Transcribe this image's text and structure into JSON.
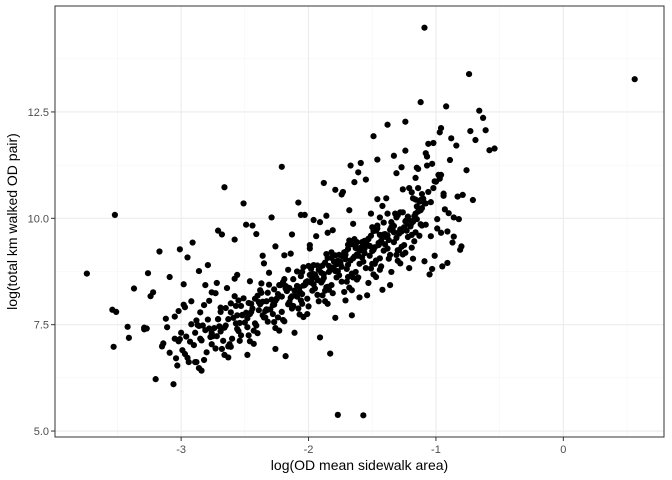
{
  "chart_data": {
    "type": "scatter",
    "xlabel": "log(OD mean sidewalk area)",
    "ylabel": "log(total km walked OD pair)",
    "xlim": [
      -3.99,
      0.79
    ],
    "ylim": [
      4.86,
      14.99
    ],
    "x_ticks": [
      -3,
      -2,
      -1,
      0
    ],
    "x_tick_labels": [
      "-3",
      "-2",
      "-1",
      "0"
    ],
    "y_ticks": [
      5.0,
      7.5,
      10.0,
      12.5
    ],
    "y_tick_labels": [
      "5.0",
      "7.5",
      "10.0",
      "12.5"
    ],
    "grid": true,
    "legend": "none",
    "colors": {
      "point": "#000000",
      "grid_major": "#ebebeb",
      "grid_minor": "#f5f5f5",
      "panel_border": "#333333"
    },
    "x": [
      -3.74,
      -3.52,
      -3.54,
      -3.51,
      -3.53,
      -3.42,
      -3.37,
      -3.29,
      -3.26,
      -3.24,
      -3.22,
      -3.27,
      -3.14,
      -3.09,
      -3.04,
      -3.02,
      -3.01,
      -2.98,
      -2.97,
      -2.95,
      -2.92,
      -2.89,
      -2.88,
      -2.86,
      -2.84,
      -2.82,
      -2.81,
      -2.79,
      -2.76,
      -2.73,
      -2.71,
      -2.69,
      -2.66,
      -2.64,
      -2.61,
      -2.58,
      -2.56,
      -2.54,
      -2.51,
      -2.48,
      -2.46,
      -2.44,
      -2.42,
      -2.39,
      -2.36,
      -2.34,
      -2.31,
      -2.28,
      -2.26,
      -2.23,
      -2.21,
      -2.19,
      -2.16,
      -2.13,
      -2.11,
      -2.09,
      -2.06,
      -2.04,
      -2.01,
      -1.99,
      -1.96,
      -1.94,
      -1.91,
      -1.89,
      -1.86,
      -1.84,
      -1.81,
      -1.79,
      -1.76,
      -1.74,
      -1.71,
      -1.69,
      -1.66,
      -1.64,
      -1.61,
      -1.59,
      -1.56,
      -1.54,
      -1.51,
      -1.49,
      -1.46,
      -1.44,
      -1.41,
      -1.39,
      -1.36,
      -1.34,
      -1.31,
      -1.29,
      -1.26,
      -1.24,
      -1.21,
      -1.19,
      -1.16,
      -1.14,
      -1.11,
      -1.09,
      -1.06,
      -1.04,
      -1.01,
      -0.99,
      -0.96,
      -0.94,
      -0.91,
      -0.89,
      -0.86,
      -0.84,
      -0.81,
      -0.79,
      -0.76,
      -0.73,
      -0.71,
      -0.69,
      -0.66,
      -0.63,
      -0.61,
      -0.58,
      -0.54,
      -0.74,
      -0.92,
      0.56,
      -1.09,
      -1.77,
      -1.57,
      -1.83,
      -2.26,
      -2.18,
      -2.63,
      -1.38,
      -1.12,
      -0.97,
      -1.02,
      -1.24,
      -1.49,
      -1.67,
      -1.88,
      -2.03,
      -2.41,
      -2.72,
      -2.96,
      -3.09,
      -1.31,
      -1.16,
      -1.42,
      -1.55,
      -1.73,
      -1.96,
      -2.14,
      -2.37,
      -2.55,
      -2.86,
      -1.27,
      -1.08,
      -0.88,
      -1.33,
      -1.61,
      -1.79,
      -2.08,
      -2.29,
      -2.49,
      -2.68,
      -2.91,
      -3.17,
      -1.21,
      -1.46,
      -1.68,
      -1.91,
      -1.58,
      -1.37,
      -1.19,
      -1.04,
      -0.94,
      -0.83,
      -1.13,
      -1.29,
      -1.52,
      -1.71,
      -1.84,
      -2.02,
      -2.24,
      -2.44,
      -2.63,
      -2.81,
      -3.02,
      -1.44,
      -1.26,
      -1.07,
      -1.65,
      -1.85,
      -1.99,
      -2.19,
      -2.35,
      -2.58,
      -2.76,
      -2.97,
      -3.12,
      -3.29,
      -3.41,
      -1.11,
      -1.33,
      -1.53,
      -1.72,
      -1.93,
      -2.12,
      -2.32,
      -2.53,
      -2.71,
      -2.89,
      -1.38,
      -1.18,
      -1.02,
      -0.96,
      -1.47,
      -1.63,
      -1.82,
      -2.05,
      -2.22,
      -2.42,
      -2.61,
      -2.83,
      -3.01,
      -1.23,
      -1.41,
      -1.59,
      -1.76,
      -1.95,
      -2.15,
      -2.33,
      -2.52,
      -2.74,
      -2.93,
      -1.15,
      -1.35,
      -1.51,
      -1.69,
      -1.87,
      -2.06,
      -2.27,
      -2.47,
      -1.25,
      -1.43,
      -1.62,
      -1.81,
      -2.01,
      -1.08,
      -1.31,
      -1.49,
      -1.66,
      -1.85,
      -2.09,
      -2.31,
      -2.51,
      -2.69,
      -2.87,
      -3.05,
      -1.19,
      -1.39,
      -1.57,
      -1.75,
      -1.94,
      -2.11,
      -1.28,
      -1.45,
      -1.64,
      -1.83,
      -2.02,
      -2.21,
      -2.39,
      -2.57,
      -2.77,
      -2.99,
      -1.14,
      -1.34,
      -1.53,
      -1.71,
      -1.89,
      -1.22,
      -1.42,
      -1.6,
      -1.78,
      -1.97,
      -2.17,
      -2.38,
      -2.59,
      -1.12,
      -1.32,
      -1.5,
      -1.68,
      -1.86,
      -2.04,
      -1.24,
      -1.44,
      -1.63,
      -1.8,
      -1.99,
      -2.18,
      -2.36,
      -2.56,
      -2.78,
      -1.17,
      -1.36,
      -1.55,
      -1.73,
      -1.92,
      -1.29,
      -1.48,
      -1.67,
      -1.88,
      -2.07,
      -2.26,
      -2.46,
      -2.66,
      -1.21,
      -1.4,
      -1.58,
      -1.77,
      -1.96,
      -2.16,
      -1.33,
      -1.52,
      -1.7,
      -1.9,
      -2.1,
      -2.3,
      -2.5,
      -2.72,
      -1.13,
      -1.3,
      -1.46,
      -1.62,
      -1.79,
      -1.98,
      -2.2,
      -2.4,
      -1.27,
      -1.45,
      -1.65,
      -1.84,
      -2.03,
      -2.25,
      -2.45,
      -2.65,
      -2.85,
      -1.2,
      -1.37,
      -1.56,
      -1.74,
      -1.93,
      -1.3,
      -1.5,
      -1.69,
      -1.87,
      -2.05,
      -2.24,
      -2.43,
      -2.62,
      -1.16,
      -1.35,
      -1.54,
      -1.72,
      -1.91,
      -1.26,
      -1.43,
      -1.61,
      -1.8,
      -1.98,
      -2.13,
      -2.33,
      -2.54,
      -2.75,
      -1.18,
      -1.38,
      -1.56,
      -1.75,
      -1.95,
      -1.27,
      -1.47,
      -1.66,
      -1.86,
      -2.06,
      -2.28,
      -2.48,
      -2.67,
      -1.1,
      -1.28,
      -1.46,
      -1.64,
      -1.82,
      -2.0,
      -2.19,
      -2.37,
      -2.57,
      -2.79,
      -3.0,
      -3.15,
      -1.23,
      -1.4,
      -1.58,
      -1.77,
      -1.96,
      -2.14,
      -2.34,
      -1.31,
      -1.51,
      -1.7,
      -1.89,
      -2.08,
      -2.27,
      -2.47,
      -2.68,
      -2.88,
      -1.15,
      -1.33,
      -1.52,
      -1.71,
      -1.9,
      -2.09,
      -2.29,
      -2.49,
      -2.7,
      -1.22,
      -1.41,
      -1.6,
      -1.78,
      -1.97,
      -2.16,
      -2.35,
      -2.55,
      -2.76,
      -2.95,
      -1.25,
      -1.44,
      -1.63,
      -1.82,
      -2.01,
      -2.21,
      -2.41,
      -2.6,
      -2.8,
      -3.03,
      -3.2,
      -1.19,
      -1.38,
      -1.57,
      -1.76,
      -1.95,
      -2.15,
      -2.36,
      -2.56,
      -1.3,
      -1.49,
      -1.68,
      -1.87,
      -2.07,
      -2.26,
      -2.46,
      -2.66,
      -2.86,
      -1.12,
      -1.31,
      -1.5,
      -1.69,
      -1.88,
      -2.07,
      -2.27,
      -2.48,
      -2.69,
      -2.9,
      -1.24,
      -1.43,
      -1.62,
      -1.81,
      -2.0,
      -2.2,
      -2.4,
      -2.61,
      -2.82,
      -1.17,
      -1.36,
      -1.55,
      -1.74,
      -1.93,
      -2.13,
      -2.32,
      -2.53,
      -2.73,
      -2.94,
      -1.28,
      -1.47,
      -1.66,
      -1.85,
      -2.04,
      -2.23,
      -2.43,
      -2.63,
      -2.84,
      -3.06,
      -1.06,
      -0.97,
      -0.9,
      -0.8,
      -1.03,
      -0.99,
      -1.14,
      -1.09,
      -0.86,
      -0.93,
      -1.01,
      -1.07,
      -0.95,
      -0.82,
      -1.16,
      -1.05,
      -0.98,
      -0.87,
      -1.12,
      -1.18,
      -1.0,
      -0.91,
      -1.08,
      -1.15,
      -1.22,
      -1.03,
      -0.96,
      -1.11,
      -1.19,
      -1.26,
      -1.35,
      -1.42,
      -1.48,
      -1.53,
      -1.6,
      -1.65,
      -1.72,
      -1.79,
      -1.85,
      -1.92,
      -1.98,
      -2.05,
      -2.12,
      -2.18,
      -2.25,
      -2.32,
      -2.38,
      -2.45,
      -2.52,
      -2.58,
      -2.65,
      -2.71,
      -2.78,
      -2.85,
      -2.92,
      -2.98,
      -3.05,
      -3.11
    ],
    "y": [
      8.7,
      10.08,
      7.85,
      7.8,
      6.98,
      7.45,
      8.35,
      7.43,
      8.71,
      8.17,
      8.26,
      7.41,
      7.06,
      8.62,
      6.71,
      7.82,
      9.27,
      8.45,
      6.81,
      9.08,
      8.05,
      6.62,
      7.6,
      8.76,
      7.13,
      7.96,
      8.43,
      8.9,
      7.3,
      8.24,
      9.71,
      7.9,
      10.73,
      8.36,
      8.0,
      9.5,
      8.67,
      7.12,
      10.35,
      6.79,
      8.52,
      9.83,
      7.53,
      8.03,
      9.12,
      7.67,
      8.72,
      7.96,
      9.34,
      8.43,
      11.21,
      7.58,
      8.79,
      9.62,
      7.31,
      8.16,
      10.08,
      8.42,
      7.75,
      9.29,
      8.9,
      9.58,
      7.2,
      8.54,
      10.06,
      8.32,
      9.72,
      7.66,
      9.14,
      10.56,
      8.07,
      9.38,
      7.72,
      10.85,
      8.61,
      11.3,
      9.47,
      8.19,
      10.11,
      9.26,
      11.38,
      8.79,
      9.9,
      10.47,
      8.43,
      9.72,
      11.06,
      9.25,
      10.14,
      11.59,
      8.83,
      10.61,
      9.67,
      11.16,
      9.83,
      10.35,
      11.75,
      9.58,
      10.87,
      9.98,
      12.12,
      10.58,
      9.69,
      11.37,
      10.02,
      11.71,
      9.26,
      10.55,
      11.13,
      12.05,
      10.43,
      11.84,
      12.53,
      12.36,
      12.07,
      11.6,
      11.64,
      13.39,
      12.63,
      13.27,
      14.48,
      5.38,
      5.37,
      6.82,
      6.93,
      6.76,
      6.99,
      12.2,
      12.73,
      12.02,
      11.77,
      12.27,
      11.93,
      11.24,
      10.83,
      10.08,
      9.63,
      8.48,
      7.22,
      6.84,
      10.05,
      10.95,
      10.29,
      10.91,
      10.62,
      9.96,
      9.17,
      8.47,
      8.07,
      7.47,
      11.2,
      11.53,
      11.88,
      11.47,
      11.08,
      10.67,
      10.37,
      10.02,
      9.85,
      9.62,
      9.43,
      9.22,
      10.71,
      10.45,
      10.19,
      9.91,
      9.44,
      9.05,
      9.93,
      10.38,
      10.53,
      10.51,
      9.59,
      9.67,
      9.35,
      9.14,
      8.88,
      8.5,
      8.22,
      7.88,
      7.63,
      7.37,
      7.11,
      10.02,
      10.68,
      11.24,
      9.87,
      9.66,
      9.37,
      9.13,
      8.94,
      8.58,
      8.26,
      7.91,
      7.64,
      7.39,
      7.19,
      10.24,
      9.82,
      9.51,
      9.2,
      8.89,
      8.57,
      8.25,
      7.94,
      7.63,
      7.31,
      10.11,
      10.47,
      10.71,
      11.02,
      9.71,
      9.39,
      9.07,
      8.74,
      8.43,
      8.11,
      7.79,
      7.48,
      7.16,
      9.96,
      9.62,
      9.31,
      8.99,
      8.68,
      8.36,
      8.05,
      7.73,
      7.42,
      7.1,
      10.28,
      9.91,
      9.59,
      9.28,
      8.96,
      8.64,
      8.33,
      8.01,
      9.79,
      9.47,
      9.15,
      8.84,
      8.52,
      10.35,
      10.02,
      9.7,
      9.39,
      9.07,
      8.75,
      8.44,
      8.12,
      7.8,
      7.49,
      7.17,
      9.89,
      9.56,
      9.24,
      8.93,
      8.61,
      8.3,
      9.74,
      9.42,
      9.1,
      8.79,
      8.47,
      8.16,
      7.84,
      7.53,
      7.21,
      6.9,
      10.16,
      9.84,
      9.52,
      9.21,
      8.89,
      9.87,
      9.55,
      9.24,
      8.92,
      8.61,
      8.29,
      7.98,
      7.66,
      10.43,
      10.11,
      9.79,
      9.48,
      9.16,
      8.85,
      9.93,
      9.61,
      9.3,
      8.98,
      8.67,
      8.35,
      8.04,
      7.72,
      7.41,
      10.05,
      9.73,
      9.42,
      9.1,
      8.79,
      9.64,
      9.32,
      9.01,
      8.69,
      8.38,
      8.06,
      7.75,
      7.43,
      9.95,
      9.63,
      9.32,
      9.0,
      8.69,
      8.37,
      9.44,
      9.12,
      8.81,
      8.49,
      8.18,
      7.86,
      7.55,
      7.23,
      10.39,
      10.07,
      9.76,
      9.44,
      9.13,
      8.81,
      8.5,
      8.18,
      9.69,
      9.37,
      9.06,
      8.74,
      8.43,
      8.11,
      7.8,
      7.48,
      7.17,
      9.81,
      9.49,
      9.18,
      8.86,
      8.55,
      9.25,
      8.93,
      8.62,
      8.3,
      7.99,
      7.67,
      7.36,
      7.04,
      10.11,
      9.79,
      9.48,
      9.16,
      8.85,
      9.75,
      9.43,
      9.12,
      8.8,
      8.49,
      8.17,
      7.86,
      7.54,
      7.23,
      9.92,
      9.6,
      9.29,
      8.97,
      8.66,
      9.33,
      9.01,
      8.7,
      8.38,
      8.07,
      7.75,
      7.44,
      7.12,
      10.46,
      10.14,
      9.83,
      9.51,
      9.2,
      8.88,
      8.57,
      8.25,
      7.94,
      7.62,
      7.31,
      6.99,
      9.71,
      9.39,
      9.08,
      8.76,
      8.45,
      8.13,
      7.82,
      9.14,
      8.82,
      8.51,
      8.19,
      7.88,
      7.56,
      7.25,
      6.93,
      6.62,
      9.98,
      9.67,
      9.35,
      9.04,
      8.72,
      8.41,
      8.09,
      7.78,
      7.46,
      9.56,
      9.24,
      8.93,
      8.61,
      8.3,
      7.98,
      7.67,
      7.35,
      7.04,
      6.72,
      9.37,
      9.06,
      8.74,
      8.43,
      8.11,
      7.8,
      7.48,
      7.17,
      6.85,
      6.54,
      6.22,
      9.61,
      9.29,
      8.98,
      8.66,
      8.35,
      8.03,
      7.72,
      7.4,
      9.0,
      8.68,
      8.37,
      8.05,
      7.74,
      7.42,
      7.11,
      6.79,
      6.48,
      9.86,
      9.54,
      9.23,
      8.91,
      8.6,
      8.28,
      7.97,
      7.65,
      7.34,
      7.02,
      9.19,
      8.87,
      8.56,
      8.24,
      7.93,
      7.61,
      7.3,
      6.98,
      6.67,
      9.46,
      9.14,
      8.83,
      8.51,
      8.2,
      7.88,
      7.57,
      7.25,
      6.94,
      6.62,
      8.94,
      8.62,
      8.31,
      7.99,
      7.68,
      7.36,
      7.05,
      6.73,
      6.42,
      6.1,
      10.62,
      10.93,
      10.12,
      9.34,
      11.28,
      9.76,
      10.71,
      8.99,
      9.57,
      10.21,
      9.12,
      11.45,
      8.87,
      9.98,
      10.44,
      8.68,
      11.02,
      9.43,
      10.19,
      9.05,
      10.86,
      8.95,
      9.85,
      11.19,
      10.04,
      8.81,
      9.66,
      10.57,
      9.31,
      9.15,
      8.74,
      8.32,
      8.93,
      8.48,
      8.14,
      8.61,
      8.27,
      8.76,
      8.39,
      8.05,
      8.53,
      8.22,
      7.94,
      8.41,
      8.11,
      7.85,
      8.31,
      7.99,
      7.72,
      8.17,
      7.89,
      7.63,
      8.06,
      7.79,
      7.51,
      7.97,
      7.69,
      7.44
    ]
  }
}
